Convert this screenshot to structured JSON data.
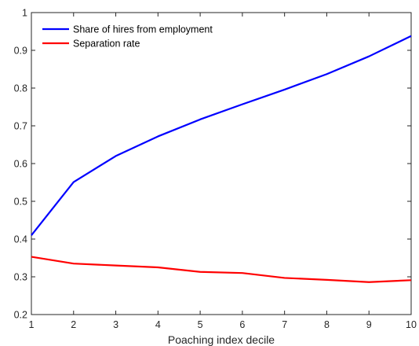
{
  "chart_data": {
    "type": "line",
    "title": "",
    "xlabel": "Poaching index decile",
    "ylabel": "",
    "x": [
      1,
      2,
      3,
      4,
      5,
      6,
      7,
      8,
      9,
      10
    ],
    "xticks": [
      "1",
      "2",
      "3",
      "4",
      "5",
      "6",
      "7",
      "8",
      "9",
      "10"
    ],
    "yticks": [
      "0.2",
      "0.3",
      "0.4",
      "0.5",
      "0.6",
      "0.7",
      "0.8",
      "0.9",
      "1"
    ],
    "xlim": [
      1,
      10
    ],
    "ylim": [
      0.2,
      1
    ],
    "grid": false,
    "legend_position": "top-left",
    "series": [
      {
        "name": "Share of hires from employment",
        "color": "#0000ff",
        "values": [
          0.41,
          0.551,
          0.62,
          0.672,
          0.717,
          0.757,
          0.796,
          0.837,
          0.884,
          0.938
        ]
      },
      {
        "name": "Separation rate",
        "color": "#ff0000",
        "values": [
          0.353,
          0.335,
          0.33,
          0.325,
          0.313,
          0.31,
          0.297,
          0.292,
          0.286,
          0.291
        ]
      }
    ]
  }
}
